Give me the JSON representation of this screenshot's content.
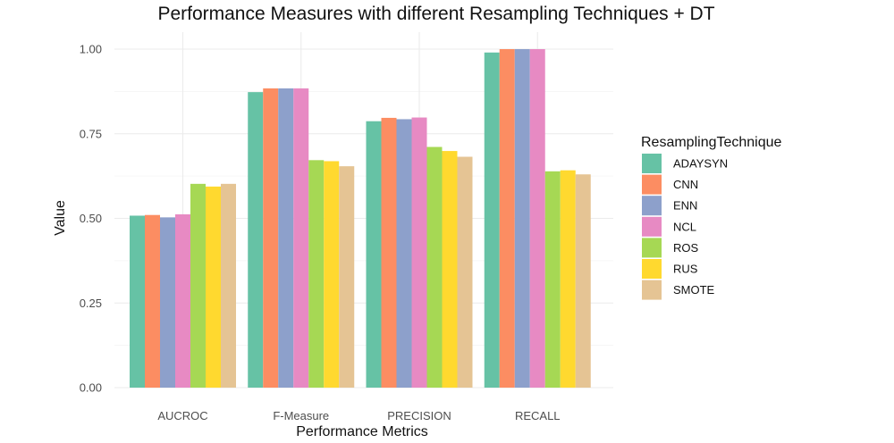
{
  "chart_data": {
    "type": "bar",
    "title": "Performance Measures with different Resampling Techniques + DT",
    "xlabel": "Performance Metrics",
    "ylabel": "Value",
    "ylim": [
      0,
      1.04
    ],
    "yticks": [
      0.0,
      0.25,
      0.5,
      0.75,
      1.0
    ],
    "ytick_labels": [
      "0.00",
      "0.25",
      "0.50",
      "0.75",
      "1.00"
    ],
    "categories": [
      "AUCROC",
      "F-Measure",
      "PRECISION",
      "RECALL"
    ],
    "legend_title": "ResamplingTechnique",
    "legend_position": "right",
    "grid": true,
    "series": [
      {
        "name": "ADAYSYN",
        "color": "#66c2a5",
        "values": [
          0.508,
          0.873,
          0.787,
          0.99
        ]
      },
      {
        "name": "CNN",
        "color": "#fc8d62",
        "values": [
          0.51,
          0.884,
          0.797,
          1.0
        ]
      },
      {
        "name": "ENN",
        "color": "#8da0cb",
        "values": [
          0.503,
          0.884,
          0.793,
          1.0
        ]
      },
      {
        "name": "NCL",
        "color": "#e78ac3",
        "values": [
          0.512,
          0.884,
          0.798,
          1.0
        ]
      },
      {
        "name": "ROS",
        "color": "#a6d854",
        "values": [
          0.602,
          0.672,
          0.711,
          0.639
        ]
      },
      {
        "name": "RUS",
        "color": "#ffd92f",
        "values": [
          0.594,
          0.669,
          0.699,
          0.642
        ]
      },
      {
        "name": "SMOTE",
        "color": "#e5c494",
        "values": [
          0.602,
          0.654,
          0.682,
          0.63
        ]
      }
    ]
  }
}
